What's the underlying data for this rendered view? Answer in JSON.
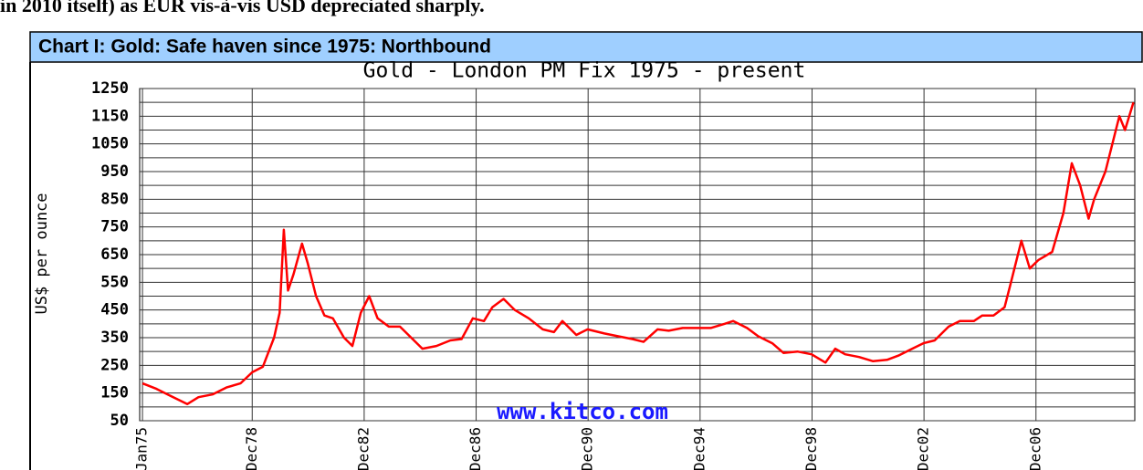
{
  "intro_text": "in 2010 itself) as EUR vis-à-vis USD depreciated sharply.",
  "header": "Chart I:  Gold: Safe haven since 1975: Northbound",
  "chart_data": {
    "type": "line",
    "title": "Gold - London PM Fix 1975 - present",
    "y_label": "US$ per ounce",
    "annotation": "www.kitco.com",
    "color": "#ff0000",
    "grid": true,
    "xlim": [
      1974.9,
      2010.45
    ],
    "ylim": [
      50,
      1250
    ],
    "yticks": [
      50,
      150,
      250,
      350,
      450,
      550,
      650,
      750,
      850,
      950,
      1050,
      1150,
      1250
    ],
    "minor_yticks": [
      100,
      200,
      300,
      400,
      500,
      600,
      700,
      800,
      900,
      1000,
      1100,
      1200
    ],
    "xticks": [
      {
        "value": 1975.0,
        "label": "Jan75"
      },
      {
        "value": 1978.92,
        "label": "Dec78"
      },
      {
        "value": 1982.92,
        "label": "Dec82"
      },
      {
        "value": 1986.92,
        "label": "Dec86"
      },
      {
        "value": 1990.92,
        "label": "Dec90"
      },
      {
        "value": 1994.92,
        "label": "Dec94"
      },
      {
        "value": 1998.92,
        "label": "Dec98"
      },
      {
        "value": 2002.92,
        "label": "Dec02"
      },
      {
        "value": 2006.92,
        "label": "Dec06"
      }
    ],
    "x": [
      1975.0,
      1975.5,
      1976.0,
      1976.6,
      1977.0,
      1977.5,
      1978.0,
      1978.5,
      1978.92,
      1979.3,
      1979.7,
      1979.9,
      1980.05,
      1980.2,
      1980.4,
      1980.7,
      1980.9,
      1981.2,
      1981.5,
      1981.8,
      1982.2,
      1982.5,
      1982.8,
      1983.1,
      1983.4,
      1983.8,
      1984.2,
      1984.6,
      1985.0,
      1985.5,
      1986.0,
      1986.4,
      1986.8,
      1987.2,
      1987.5,
      1987.9,
      1988.3,
      1988.8,
      1989.3,
      1989.7,
      1990.0,
      1990.5,
      1990.9,
      1991.5,
      1992.0,
      1992.5,
      1992.9,
      1993.4,
      1993.8,
      1994.3,
      1994.8,
      1995.3,
      1995.8,
      1996.1,
      1996.6,
      1997.0,
      1997.5,
      1997.9,
      1998.4,
      1998.9,
      1999.4,
      1999.75,
      2000.1,
      2000.6,
      2001.1,
      2001.6,
      2002.0,
      2002.5,
      2002.9,
      2003.3,
      2003.8,
      2004.2,
      2004.7,
      2005.0,
      2005.4,
      2005.8,
      2006.0,
      2006.4,
      2006.7,
      2007.0,
      2007.5,
      2007.9,
      2008.2,
      2008.5,
      2008.8,
      2009.0,
      2009.4,
      2009.9,
      2010.1,
      2010.4
    ],
    "values": [
      185,
      165,
      140,
      110,
      135,
      145,
      170,
      185,
      225,
      245,
      350,
      440,
      740,
      520,
      580,
      690,
      620,
      500,
      430,
      420,
      350,
      320,
      440,
      500,
      420,
      390,
      390,
      350,
      310,
      320,
      340,
      345,
      420,
      410,
      460,
      490,
      450,
      420,
      380,
      370,
      410,
      360,
      380,
      365,
      355,
      345,
      335,
      380,
      375,
      385,
      385,
      385,
      400,
      410,
      385,
      355,
      330,
      295,
      300,
      290,
      260,
      310,
      290,
      280,
      265,
      270,
      285,
      310,
      330,
      340,
      390,
      410,
      410,
      430,
      430,
      460,
      540,
      700,
      600,
      630,
      660,
      800,
      980,
      900,
      780,
      850,
      950,
      1150,
      1100,
      1200
    ]
  }
}
